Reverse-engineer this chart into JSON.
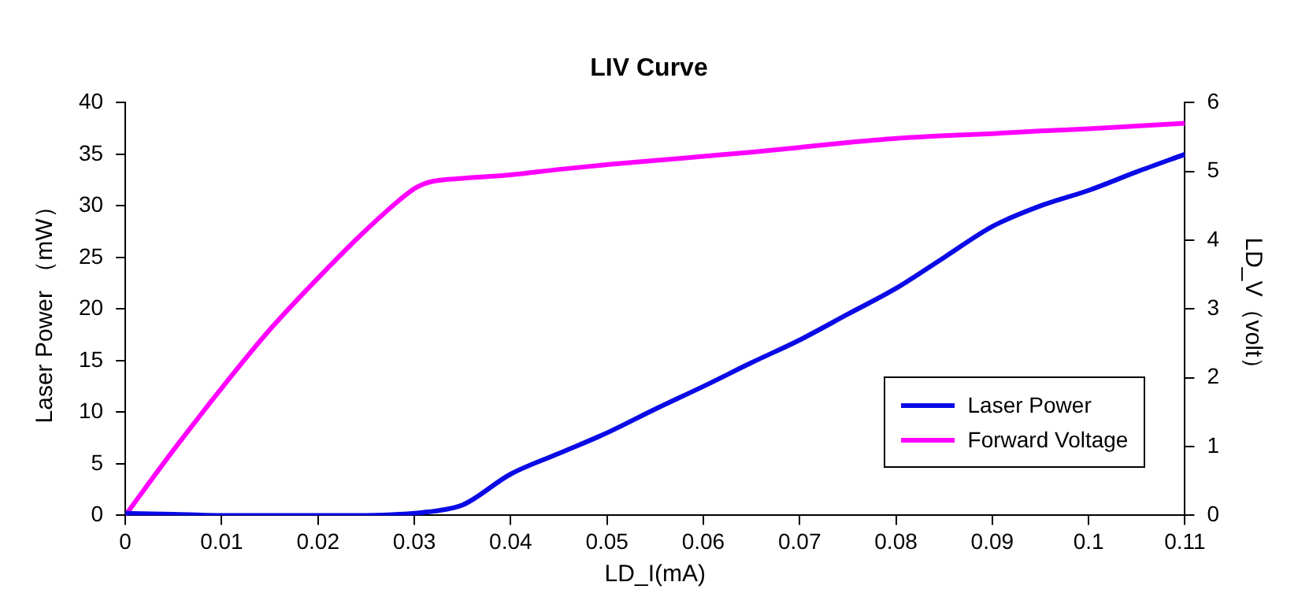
{
  "chart_data": {
    "type": "line",
    "title": "LIV Curve",
    "xlabel": "LD_I(mA)",
    "ylabel": "Laser Power （mW）",
    "y2label": "LD_V（volt）",
    "x": [
      0,
      0.005,
      0.01,
      0.015,
      0.02,
      0.025,
      0.03,
      0.031,
      0.032,
      0.035,
      0.04,
      0.045,
      0.05,
      0.055,
      0.06,
      0.065,
      0.07,
      0.075,
      0.08,
      0.085,
      0.09,
      0.095,
      0.1,
      0.105,
      0.11
    ],
    "series": [
      {
        "name": "Laser Power",
        "color": "#0a0ae6",
        "values": [
          0.2,
          0.1,
          0,
          0,
          0,
          0,
          0.2,
          0.3,
          0.4,
          1,
          4,
          6,
          8,
          10.3,
          12.5,
          14.8,
          17,
          19.5,
          22,
          25,
          28,
          30,
          31.5,
          33.3,
          35
        ]
      },
      {
        "name": "Forward Voltage",
        "color": "#ff00ff",
        "axis": "y2",
        "values": [
          0,
          0.95,
          1.85,
          2.7,
          3.45,
          4.15,
          4.75,
          4.82,
          4.86,
          4.9,
          4.95,
          5.03,
          5.1,
          5.16,
          5.22,
          5.28,
          5.35,
          5.42,
          5.48,
          5.52,
          5.55,
          5.59,
          5.62,
          5.66,
          5.7
        ]
      }
    ],
    "xlim": [
      0,
      0.11
    ],
    "xticks": [
      0,
      0.01,
      0.02,
      0.03,
      0.04,
      0.05,
      0.06,
      0.07,
      0.08,
      0.09,
      0.1,
      0.11
    ],
    "ylim": [
      0,
      40
    ],
    "yticks": [
      0,
      5,
      10,
      15,
      20,
      25,
      30,
      35,
      40
    ],
    "y2lim": [
      0,
      6
    ],
    "y2ticks": [
      0,
      1,
      2,
      3,
      4,
      5,
      6
    ],
    "grid": false,
    "legend": "bottom right",
    "marker": "none",
    "line_style": "solid"
  }
}
